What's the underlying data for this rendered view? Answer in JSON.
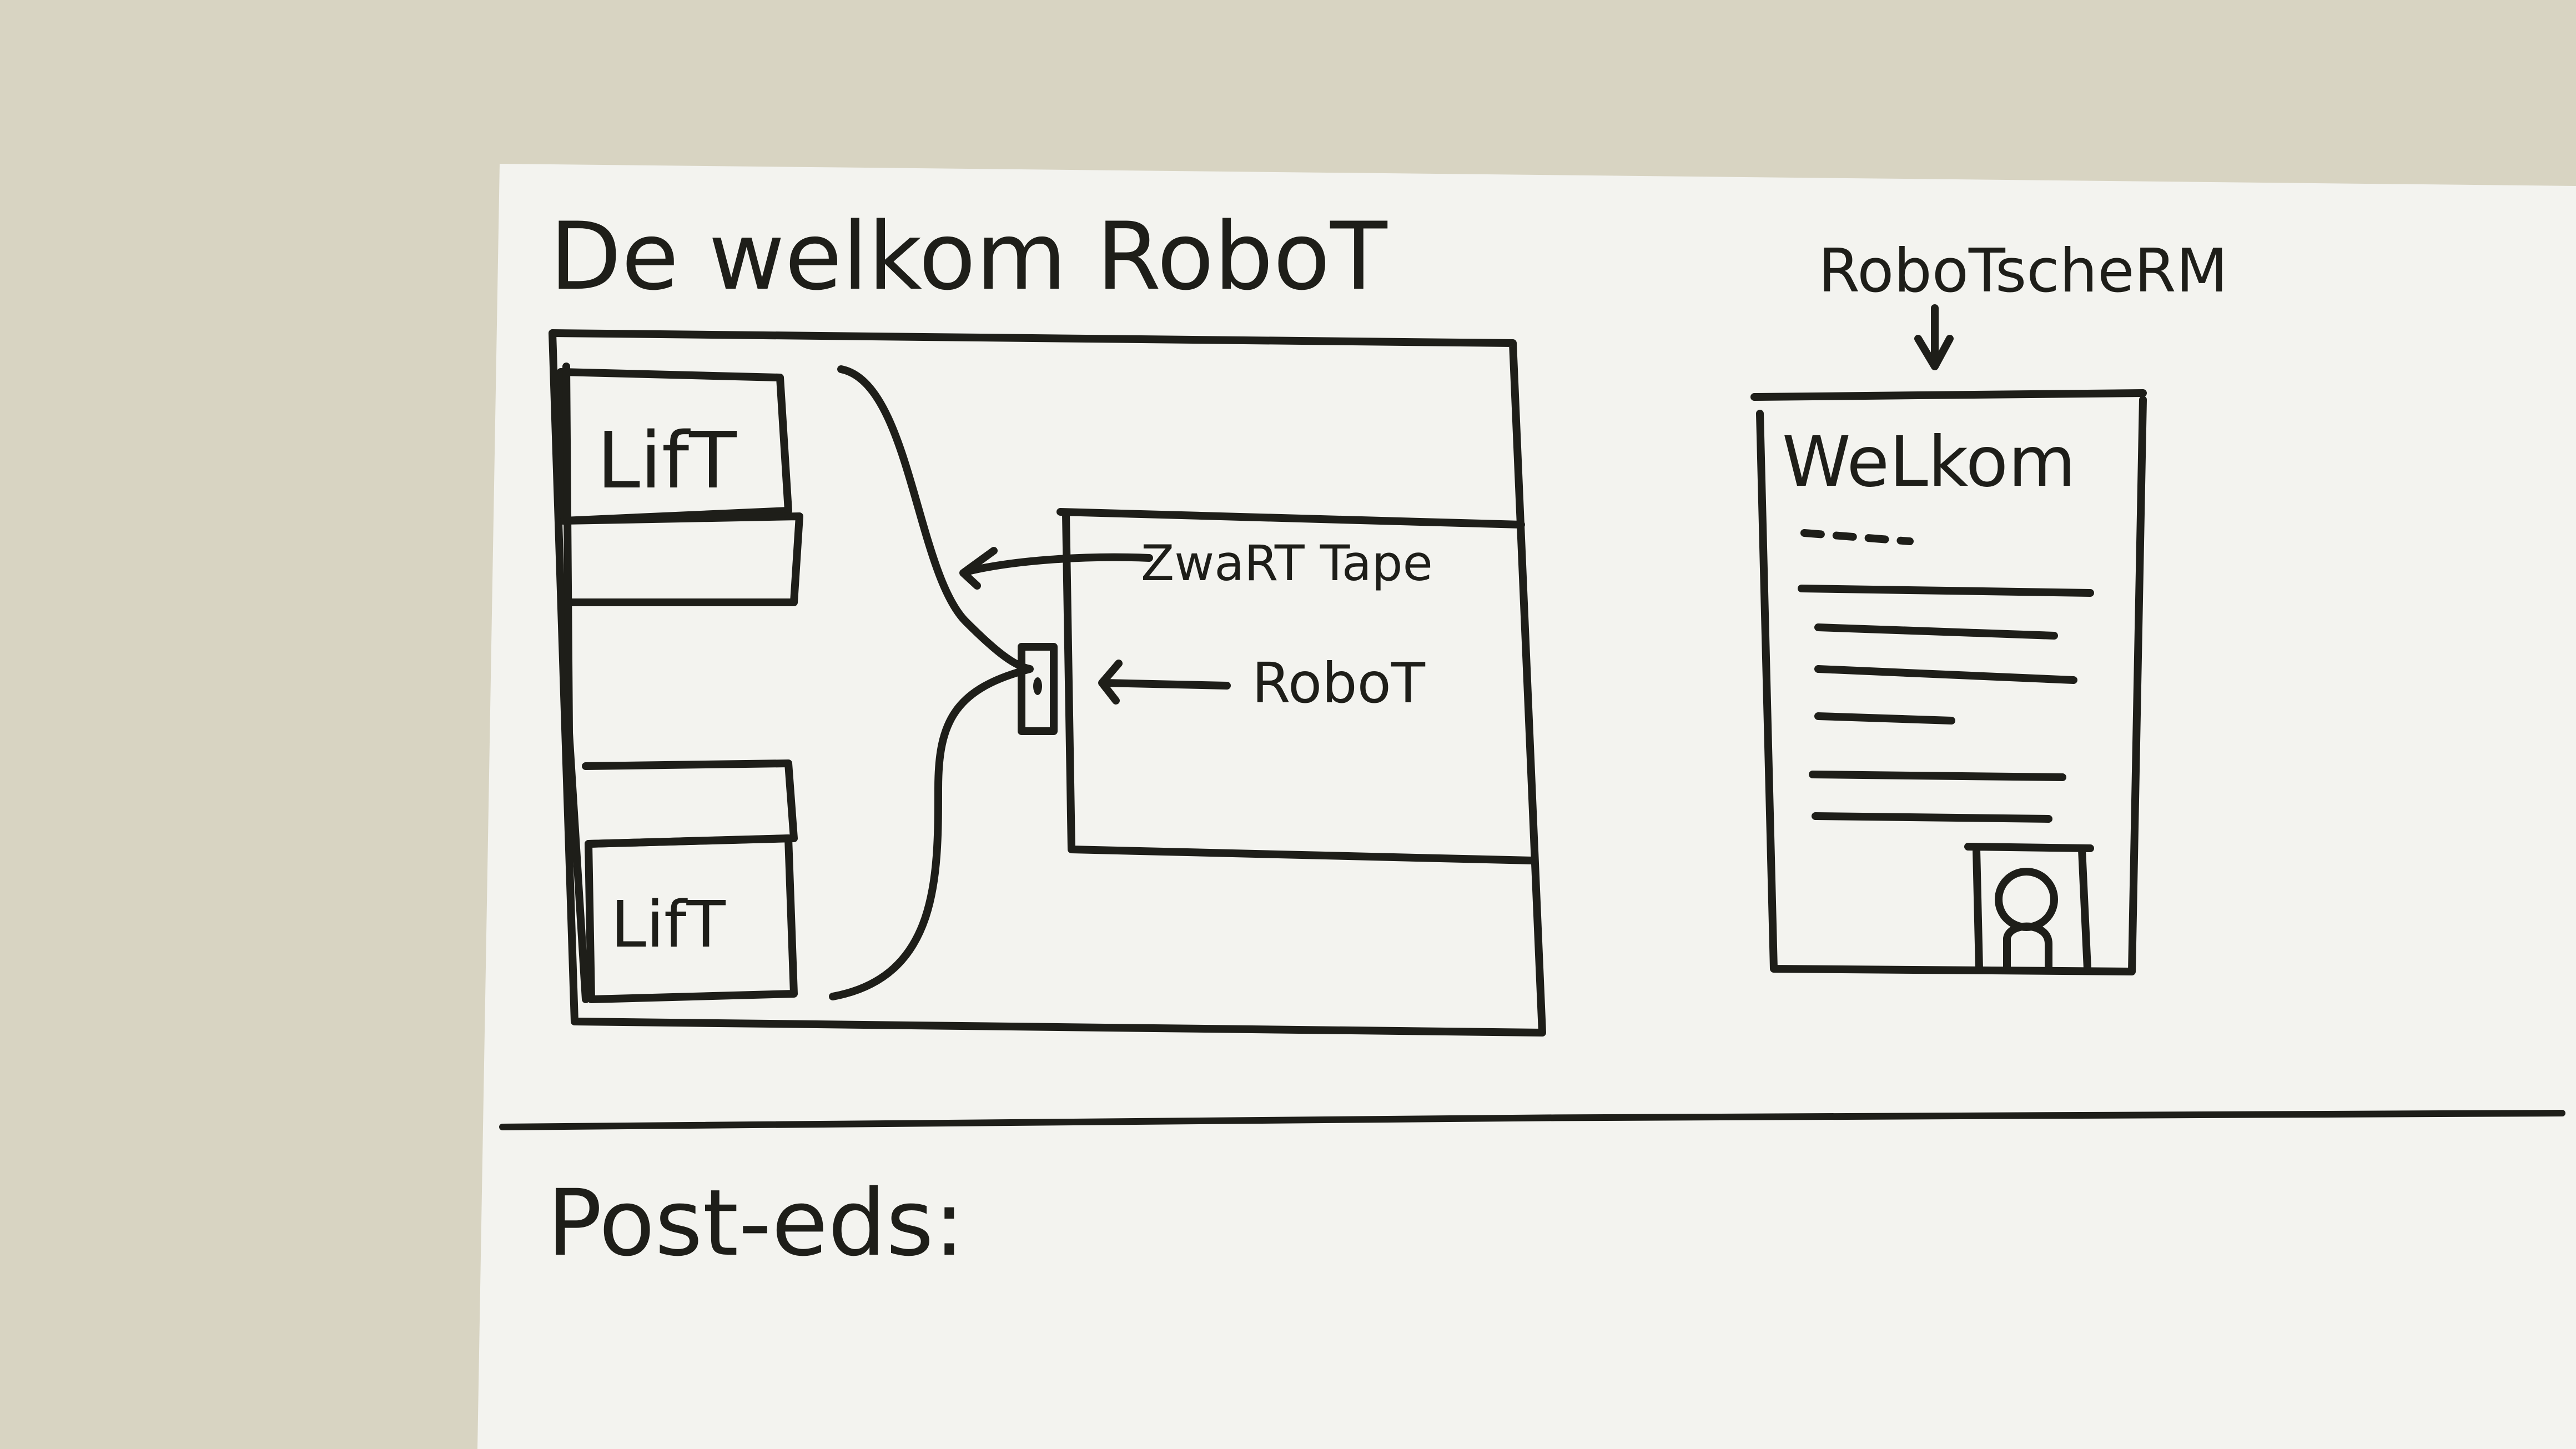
{
  "title": "De welkom RoboT",
  "floorplan": {
    "lift_top": "LifT",
    "lift_bottom": "LifT",
    "tape_label": "ZwaRT Tape",
    "robot_label": "RoboT"
  },
  "screen": {
    "caption": "RoboTscheRM",
    "greeting": "WeLkom"
  },
  "footer": {
    "postits_label": "Post-eds:"
  }
}
